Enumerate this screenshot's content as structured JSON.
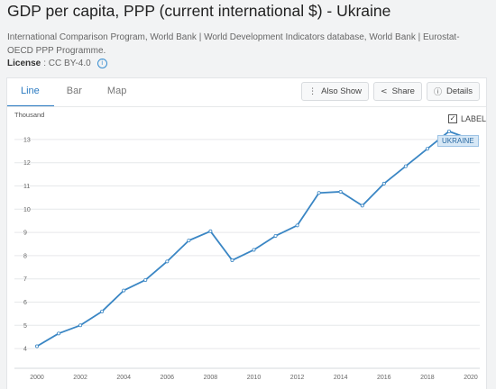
{
  "header": {
    "title": "GDP per capita, PPP (current international $) - Ukraine",
    "source": "International Comparison Program, World Bank | World Development Indicators database, World Bank | Eurostat-OECD PPP Programme.",
    "license_label": "License",
    "license_value": ": CC BY-4.0",
    "info_icon": "info-icon"
  },
  "tabs": [
    {
      "label": "Line",
      "active": true
    },
    {
      "label": "Bar",
      "active": false
    },
    {
      "label": "Map",
      "active": false
    }
  ],
  "actions": {
    "also_show": {
      "label": "Also Show",
      "icon": "vertical-dots-icon"
    },
    "share": {
      "label": "Share",
      "icon": "share-icon"
    },
    "details": {
      "label": "Details",
      "icon": "info-icon"
    }
  },
  "legend": {
    "checkbox_label": "LABEL",
    "checked": true,
    "series_tag": "UKRAINE"
  },
  "colors": {
    "line": "#3a86c4",
    "accent": "#2a7ac1",
    "grid": "#e6e8ea"
  },
  "chart_data": {
    "type": "line",
    "title": "",
    "xlabel": "",
    "ylabel": "Thousand",
    "ylim": [
      3.5,
      13.5
    ],
    "xlim": [
      2000,
      2020
    ],
    "y_ticks": [
      4,
      5,
      6,
      7,
      8,
      9,
      10,
      11,
      12,
      13
    ],
    "x_ticks": [
      2000,
      2002,
      2004,
      2006,
      2008,
      2010,
      2012,
      2014,
      2016,
      2018,
      2020
    ],
    "grid": "horizontal",
    "series": [
      {
        "name": "UKRAINE",
        "x": [
          2000,
          2001,
          2002,
          2003,
          2004,
          2005,
          2006,
          2007,
          2008,
          2009,
          2010,
          2011,
          2012,
          2013,
          2014,
          2015,
          2016,
          2017,
          2018,
          2019,
          2020
        ],
        "values": [
          4.1,
          4.65,
          5.0,
          5.6,
          6.5,
          6.95,
          7.75,
          8.65,
          9.05,
          7.8,
          8.25,
          8.85,
          9.3,
          10.7,
          10.75,
          10.15,
          11.1,
          11.85,
          12.6,
          13.35,
          13.0
        ]
      }
    ]
  }
}
